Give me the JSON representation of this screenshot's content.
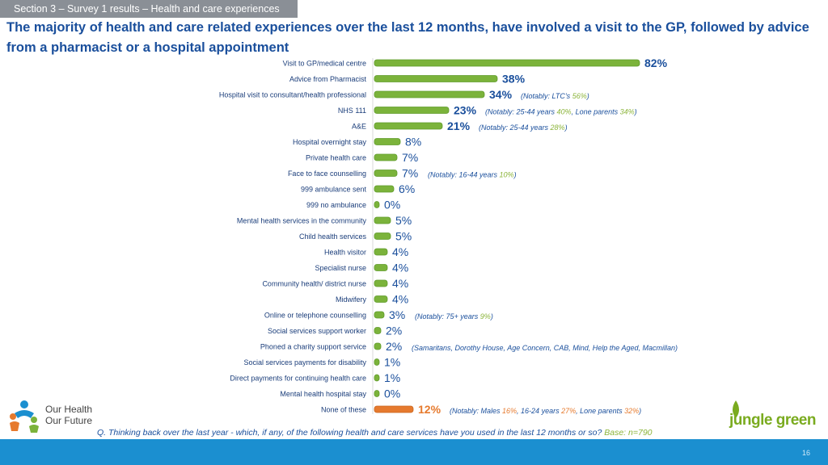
{
  "section": "Section 3 – Survey 1 results – Health and care experiences",
  "headline": "The majority of health and care related experiences over the last 12 months, have involved a visit to the GP, followed by advice from a pharmacist or a hospital appointment",
  "question": "Q. Thinking back over the last year - which, if any, of the following health and care services have you used in the last 12 months or so?",
  "base": "Base: n=790",
  "page_number": "16",
  "logo_left_text": "Our Health\nOur Future",
  "logo_right_text": "jungle green",
  "colors": {
    "bar_green": "#7bb33b",
    "bar_orange": "#e67a2e",
    "title_blue": "#1a4f9c",
    "note_green": "#8bb43a",
    "note_orange": "#e67a2e",
    "footer_blue": "#1b8fd0"
  },
  "chart_data": {
    "type": "bar",
    "orientation": "horizontal",
    "unit": "%",
    "categories": [
      "Visit to GP/medical centre",
      "Advice from Pharmacist",
      "Hospital visit to consultant/health professional",
      "NHS 111",
      "A&E",
      "Hospital overnight stay",
      "Private health  care",
      "Face to face counselling",
      "999 ambulance sent",
      "999 no ambulance",
      "Mental health services in the community",
      "Child health services",
      "Health visitor",
      "Specialist nurse",
      "Community health/ district nurse",
      "Midwifery",
      "Online or telephone counselling",
      "Social services support worker",
      "Phoned a charity support service",
      "Social services payments for disability",
      "Direct payments for continuing health care",
      "Mental health hospital stay",
      "None of these"
    ],
    "values": [
      82,
      38,
      34,
      23,
      21,
      8,
      7,
      7,
      6,
      0,
      5,
      5,
      4,
      4,
      4,
      4,
      3,
      2,
      2,
      1,
      1,
      0,
      12
    ],
    "labels": [
      "82%",
      "38%",
      "34%",
      "23%",
      "21%",
      "8%",
      "7%",
      "7%",
      "6%",
      "0%",
      "5%",
      "5%",
      "4%",
      "4%",
      "4%",
      "4%",
      "3%",
      "2%",
      "2%",
      "1%",
      "1%",
      "0%",
      "12%"
    ],
    "highlight_index": 22,
    "annotations": [
      {
        "row": 2,
        "parts": [
          {
            "t": "(Notably: LTC’s ",
            "c": "blue"
          },
          {
            "t": "56%",
            "c": "green"
          },
          {
            "t": ")",
            "c": "blue"
          }
        ]
      },
      {
        "row": 3,
        "parts": [
          {
            "t": "(Notably: 25-44 years ",
            "c": "blue"
          },
          {
            "t": "40%",
            "c": "green"
          },
          {
            "t": ", Lone parents ",
            "c": "blue"
          },
          {
            "t": "34%",
            "c": "green"
          },
          {
            "t": ")",
            "c": "blue"
          }
        ]
      },
      {
        "row": 4,
        "parts": [
          {
            "t": "(Notably: 25-44 years ",
            "c": "blue"
          },
          {
            "t": "28%",
            "c": "green"
          },
          {
            "t": ")",
            "c": "blue"
          }
        ]
      },
      {
        "row": 7,
        "parts": [
          {
            "t": "(Notably: 16-44 years ",
            "c": "blue"
          },
          {
            "t": "10%",
            "c": "green"
          },
          {
            "t": ")",
            "c": "blue"
          }
        ]
      },
      {
        "row": 16,
        "parts": [
          {
            "t": "(Notably: 75+ years ",
            "c": "blue"
          },
          {
            "t": "9%",
            "c": "green"
          },
          {
            "t": ")",
            "c": "blue"
          }
        ]
      },
      {
        "row": 18,
        "parts": [
          {
            "t": "(Samaritans, Dorothy House, Age Concern, CAB, Mind, Help the Aged, Macmillan)",
            "c": "blue"
          }
        ]
      },
      {
        "row": 22,
        "parts": [
          {
            "t": "(Notably: Males ",
            "c": "blue"
          },
          {
            "t": "16%",
            "c": "orange"
          },
          {
            "t": ", 16-24 years ",
            "c": "blue"
          },
          {
            "t": "27%",
            "c": "orange"
          },
          {
            "t": ", Lone parents ",
            "c": "blue"
          },
          {
            "t": "32%",
            "c": "orange"
          },
          {
            "t": ")",
            "c": "blue"
          }
        ]
      }
    ],
    "grid": false,
    "legend": "none"
  }
}
